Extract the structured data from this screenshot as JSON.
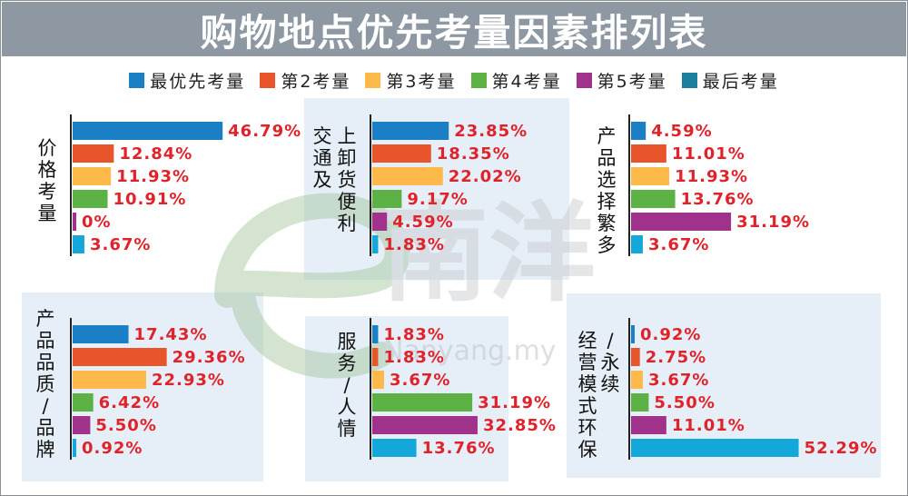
{
  "title": "购物地点优先考量因素排列表",
  "legend": [
    {
      "label": "最优先考量",
      "color": "#1a7fc4"
    },
    {
      "label": "第2考量",
      "color": "#e8552a"
    },
    {
      "label": "第3考量",
      "color": "#fdb94a"
    },
    {
      "label": "第4考量",
      "color": "#5db246"
    },
    {
      "label": "第5考量",
      "color": "#a1328c"
    },
    {
      "label": "最后考量",
      "color": "#1b7e9c"
    }
  ],
  "watermark": {
    "brand": "南洋",
    "url": "Nanyang.my"
  },
  "chart_data": [
    {
      "type": "bar",
      "title": "价格考量",
      "series": [
        "最优先考量",
        "第2考量",
        "第3考量",
        "第4考量",
        "第5考量",
        "最后考量"
      ],
      "values": [
        46.79,
        12.84,
        11.93,
        10.91,
        0,
        3.67
      ],
      "labels": [
        "46.79%",
        "12.84%",
        "11.93%",
        "10.91%",
        "0%",
        "3.67%"
      ]
    },
    {
      "type": "bar",
      "title": "上卸货便利交通及",
      "series": [
        "最优先考量",
        "第2考量",
        "第3考量",
        "第4考量",
        "第5考量",
        "最后考量"
      ],
      "values": [
        23.85,
        18.35,
        22.02,
        9.17,
        4.59,
        1.83
      ],
      "labels": [
        "23.85%",
        "18.35%",
        "22.02%",
        "9.17%",
        "4.59%",
        "1.83%"
      ]
    },
    {
      "type": "bar",
      "title": "产品选择繁多",
      "series": [
        "最优先考量",
        "第2考量",
        "第3考量",
        "第4考量",
        "第5考量",
        "最后考量"
      ],
      "values": [
        4.59,
        11.01,
        11.93,
        13.76,
        31.19,
        3.67
      ],
      "labels": [
        "4.59%",
        "11.01%",
        "11.93%",
        "13.76%",
        "31.19%",
        "3.67%"
      ]
    },
    {
      "type": "bar",
      "title": "产品品质/品牌",
      "series": [
        "最优先考量",
        "第2考量",
        "第3考量",
        "第4考量",
        "第5考量",
        "最后考量"
      ],
      "values": [
        17.43,
        29.36,
        22.93,
        6.42,
        5.5,
        0.92
      ],
      "labels": [
        "17.43%",
        "29.36%",
        "22.93%",
        "6.42%",
        "5.50%",
        "0.92%"
      ]
    },
    {
      "type": "bar",
      "title": "服务/人情",
      "series": [
        "最优先考量",
        "第2考量",
        "第3考量",
        "第4考量",
        "第5考量",
        "最后考量"
      ],
      "values": [
        1.83,
        1.83,
        3.67,
        31.19,
        32.85,
        13.76
      ],
      "labels": [
        "1.83%",
        "1.83%",
        "3.67%",
        "31.19%",
        "32.85%",
        "13.76%"
      ]
    },
    {
      "type": "bar",
      "title": "经营模式环保/永续",
      "series": [
        "最优先考量",
        "第2考量",
        "第3考量",
        "第4考量",
        "第5考量",
        "最后考量"
      ],
      "values": [
        0.92,
        2.75,
        3.67,
        5.5,
        11.01,
        52.29
      ],
      "labels": [
        "0.92%",
        "2.75%",
        "3.67%",
        "5.50%",
        "11.01%",
        "52.29%"
      ]
    }
  ]
}
